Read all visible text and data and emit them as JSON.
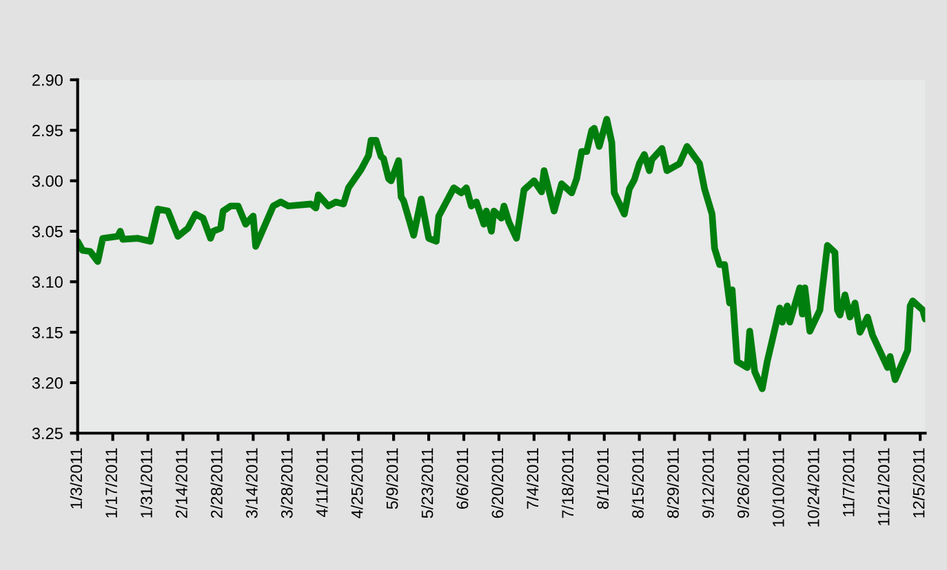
{
  "chart_data": {
    "type": "line",
    "color": "#007f0e",
    "ylim": [
      3.25,
      2.9
    ],
    "yticks": [
      {
        "value": 2.9,
        "label": "2.90"
      },
      {
        "value": 2.95,
        "label": "2.95"
      },
      {
        "value": 3.0,
        "label": "3.00"
      },
      {
        "value": 3.05,
        "label": "3.05"
      },
      {
        "value": 3.1,
        "label": "3.10"
      },
      {
        "value": 3.15,
        "label": "3.15"
      },
      {
        "value": 3.2,
        "label": "3.20"
      },
      {
        "value": 3.25,
        "label": "3.25"
      }
    ],
    "xlim": [
      "2011-01-03",
      "2011-12-07"
    ],
    "xticks": [
      {
        "value": "2011-01-03",
        "label": "1/3/2011"
      },
      {
        "value": "2011-01-17",
        "label": "1/17/2011"
      },
      {
        "value": "2011-01-31",
        "label": "1/31/2011"
      },
      {
        "value": "2011-02-14",
        "label": "2/14/2011"
      },
      {
        "value": "2011-02-28",
        "label": "2/28/2011"
      },
      {
        "value": "2011-03-14",
        "label": "3/14/2011"
      },
      {
        "value": "2011-03-28",
        "label": "3/28/2011"
      },
      {
        "value": "2011-04-11",
        "label": "4/11/2011"
      },
      {
        "value": "2011-04-25",
        "label": "4/25/2011"
      },
      {
        "value": "2011-05-09",
        "label": "5/9/2011"
      },
      {
        "value": "2011-05-23",
        "label": "5/23/2011"
      },
      {
        "value": "2011-06-06",
        "label": "6/6/2011"
      },
      {
        "value": "2011-06-20",
        "label": "6/20/2011"
      },
      {
        "value": "2011-07-04",
        "label": "7/4/2011"
      },
      {
        "value": "2011-07-18",
        "label": "7/18/2011"
      },
      {
        "value": "2011-08-01",
        "label": "8/1/2011"
      },
      {
        "value": "2011-08-15",
        "label": "8/15/2011"
      },
      {
        "value": "2011-08-29",
        "label": "8/29/2011"
      },
      {
        "value": "2011-09-12",
        "label": "9/12/2011"
      },
      {
        "value": "2011-09-26",
        "label": "9/26/2011"
      },
      {
        "value": "2011-10-10",
        "label": "10/10/2011"
      },
      {
        "value": "2011-10-24",
        "label": "10/24/2011"
      },
      {
        "value": "2011-11-07",
        "label": "11/7/2011"
      },
      {
        "value": "2011-11-21",
        "label": "11/21/2011"
      },
      {
        "value": "2011-12-05",
        "label": "12/5/2011"
      }
    ],
    "grid": false,
    "marker": "none",
    "line_style": "solid",
    "legend": false,
    "x": [
      "2011-01-03",
      "2011-01-05",
      "2011-01-08",
      "2011-01-11",
      "2011-01-13",
      "2011-01-19",
      "2011-01-20",
      "2011-01-21",
      "2011-01-27",
      "2011-02-01",
      "2011-02-04",
      "2011-02-08",
      "2011-02-12",
      "2011-02-16",
      "2011-02-19",
      "2011-02-22",
      "2011-02-25",
      "2011-02-26",
      "2011-03-01",
      "2011-03-02",
      "2011-03-05",
      "2011-03-08",
      "2011-03-11",
      "2011-03-14",
      "2011-03-15",
      "2011-03-22",
      "2011-03-25",
      "2011-03-28",
      "2011-04-06",
      "2011-04-08",
      "2011-04-09",
      "2011-04-13",
      "2011-04-16",
      "2011-04-19",
      "2011-04-21",
      "2011-04-26",
      "2011-04-29",
      "2011-04-30",
      "2011-05-02",
      "2011-05-04",
      "2011-05-05",
      "2011-05-07",
      "2011-05-08",
      "2011-05-11",
      "2011-05-12",
      "2011-05-13",
      "2011-05-17",
      "2011-05-20",
      "2011-05-23",
      "2011-05-26",
      "2011-05-27",
      "2011-06-02",
      "2011-06-05",
      "2011-06-07",
      "2011-06-09",
      "2011-06-11",
      "2011-06-14",
      "2011-06-15",
      "2011-06-17",
      "2011-06-18",
      "2011-06-21",
      "2011-06-22",
      "2011-06-24",
      "2011-06-27",
      "2011-06-30",
      "2011-07-04",
      "2011-07-07",
      "2011-07-08",
      "2011-07-12",
      "2011-07-15",
      "2011-07-19",
      "2011-07-21",
      "2011-07-23",
      "2011-07-25",
      "2011-07-27",
      "2011-07-28",
      "2011-07-30",
      "2011-08-02",
      "2011-08-04",
      "2011-08-05",
      "2011-08-09",
      "2011-08-11",
      "2011-08-13",
      "2011-08-15",
      "2011-08-17",
      "2011-08-19",
      "2011-08-20",
      "2011-08-24",
      "2011-08-26",
      "2011-08-31",
      "2011-09-03",
      "2011-09-08",
      "2011-09-10",
      "2011-09-13",
      "2011-09-14",
      "2011-09-16",
      "2011-09-18",
      "2011-09-20",
      "2011-09-21",
      "2011-09-23",
      "2011-09-27",
      "2011-09-28",
      "2011-09-30",
      "2011-10-03",
      "2011-10-05",
      "2011-10-10",
      "2011-10-11",
      "2011-10-13",
      "2011-10-14",
      "2011-10-18",
      "2011-10-19",
      "2011-10-20",
      "2011-10-22",
      "2011-10-26",
      "2011-10-29",
      "2011-11-01",
      "2011-11-02",
      "2011-11-03",
      "2011-11-05",
      "2011-11-07",
      "2011-11-09",
      "2011-11-11",
      "2011-11-14",
      "2011-11-16",
      "2011-11-22",
      "2011-11-23",
      "2011-11-25",
      "2011-11-30",
      "2011-12-01",
      "2011-12-02",
      "2011-12-06",
      "2011-12-07"
    ],
    "values": [
      3.06,
      3.069,
      3.07,
      3.08,
      3.057,
      3.055,
      3.05,
      3.058,
      3.057,
      3.06,
      3.028,
      3.03,
      3.055,
      3.047,
      3.033,
      3.037,
      3.057,
      3.05,
      3.047,
      3.03,
      3.025,
      3.025,
      3.043,
      3.035,
      3.065,
      3.025,
      3.021,
      3.025,
      3.023,
      3.027,
      3.014,
      3.025,
      3.021,
      3.023,
      3.007,
      2.989,
      2.975,
      2.96,
      2.96,
      2.976,
      2.978,
      2.998,
      3.0,
      2.98,
      3.016,
      3.02,
      3.054,
      3.018,
      3.057,
      3.06,
      3.035,
      3.007,
      3.012,
      3.007,
      3.025,
      3.021,
      3.043,
      3.03,
      3.05,
      3.03,
      3.037,
      3.025,
      3.041,
      3.057,
      3.009,
      3.0,
      3.011,
      2.99,
      3.03,
      3.003,
      3.012,
      2.998,
      2.971,
      2.971,
      2.95,
      2.948,
      2.966,
      2.939,
      2.962,
      3.012,
      3.033,
      3.008,
      2.999,
      2.983,
      2.974,
      2.99,
      2.979,
      2.968,
      2.99,
      2.983,
      2.966,
      2.983,
      3.008,
      3.033,
      3.067,
      3.083,
      3.083,
      3.121,
      3.108,
      3.179,
      3.185,
      3.149,
      3.189,
      3.206,
      3.179,
      3.126,
      3.14,
      3.124,
      3.14,
      3.106,
      3.132,
      3.106,
      3.149,
      3.128,
      3.064,
      3.071,
      3.128,
      3.133,
      3.113,
      3.135,
      3.121,
      3.15,
      3.135,
      3.153,
      3.185,
      3.174,
      3.197,
      3.168,
      3.124,
      3.119,
      3.128,
      3.137
    ]
  }
}
